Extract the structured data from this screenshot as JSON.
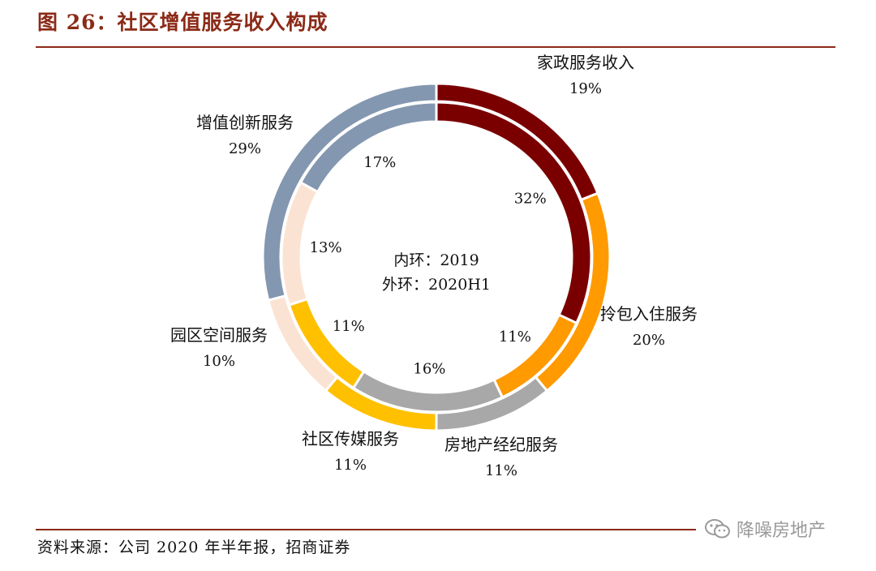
{
  "page": {
    "title": "图 26：社区增值服务收入构成",
    "source": "资料来源：公司 2020 年半年报，招商证券",
    "watermark": "降噪房地产",
    "watermark_icon": "wechat-icon"
  },
  "chart_data": {
    "type": "pie",
    "style": "nested-donut",
    "title": "图 26：社区增值服务收入构成",
    "center_label": [
      "内环：2019",
      "外环：2020H1"
    ],
    "categories": [
      "家政服务收入",
      "拎包入住服务",
      "房地产经纪服务",
      "社区传媒服务",
      "园区空间服务",
      "增值创新服务"
    ],
    "colors": [
      "#7a0000",
      "#ff9a00",
      "#a8a8a8",
      "#ffc000",
      "#fbe3d4",
      "#8497b0"
    ],
    "series": [
      {
        "ring": "inner",
        "values": [
          32,
          11,
          16,
          11,
          13,
          17
        ],
        "labels": [
          "32%",
          "11%",
          "16%",
          "11%",
          "13%",
          "17%"
        ]
      },
      {
        "ring": "outer",
        "values": [
          19,
          20,
          11,
          11,
          10,
          29
        ],
        "labels": [
          "19%",
          "20%",
          "11%",
          "11%",
          "10%",
          "29%"
        ]
      }
    ],
    "legend": "none"
  }
}
